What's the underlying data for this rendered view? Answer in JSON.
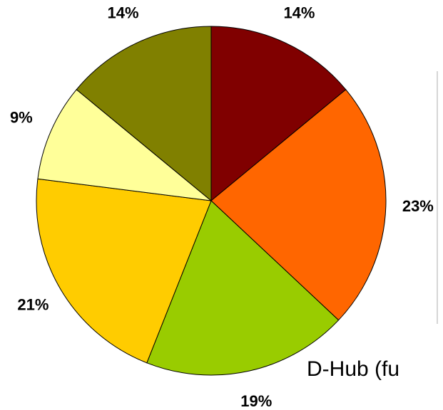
{
  "chart_data": {
    "type": "pie",
    "values": [
      14,
      23,
      19,
      21,
      9,
      14
    ],
    "value_labels": [
      "14%",
      "23%",
      "19%",
      "21%",
      "9%",
      "14%"
    ],
    "colors": [
      "#800000",
      "#ff6600",
      "#99cc00",
      "#ffcc00",
      "#ffff99",
      "#808000"
    ],
    "annotation": "D-Hub (fu"
  }
}
